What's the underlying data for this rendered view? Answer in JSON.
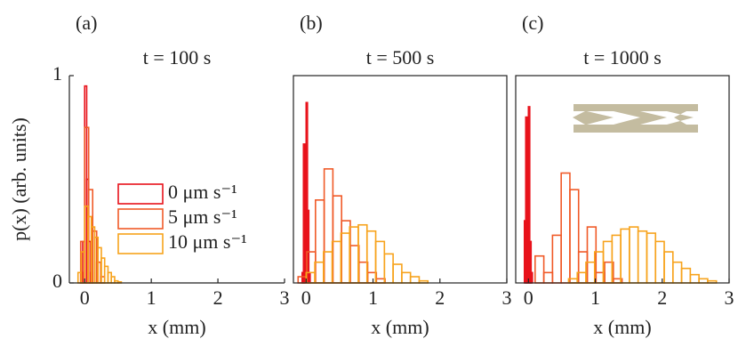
{
  "chart_data": [
    {
      "type": "histogram",
      "panel_label": "(a)",
      "title": "t = 100 s",
      "xlabel": "x (mm)",
      "ylabel": "p(x) (arb. units)",
      "xlim": [
        -0.23,
        3
      ],
      "ylim": [
        0,
        1
      ],
      "xticks": [
        0,
        1,
        2,
        3
      ],
      "yticks": [
        0,
        1
      ],
      "box": false,
      "legend": "right",
      "series": [
        {
          "name": "0 μm s⁻¹",
          "color": "#e8121b",
          "bins": [
            -0.06,
            -0.03,
            0,
            0.03,
            0.06,
            0.09,
            0.12
          ],
          "values": [
            0.05,
            0.2,
            0.95,
            0.5,
            0.2,
            0.05
          ]
        },
        {
          "name": "5 μm s⁻¹",
          "color": "#f05a28",
          "bins": [
            -0.06,
            0,
            0.06,
            0.12,
            0.18,
            0.24,
            0.3
          ],
          "values": [
            0.2,
            0.75,
            0.45,
            0.25,
            0.1,
            0.03
          ]
        },
        {
          "name": "10 μm s⁻¹",
          "color": "#f7a31c",
          "bins": [
            -0.1,
            -0.05,
            0,
            0.05,
            0.1,
            0.15,
            0.2,
            0.25,
            0.3,
            0.35,
            0.4,
            0.45,
            0.5,
            0.55
          ],
          "values": [
            0.05,
            0.15,
            0.37,
            0.32,
            0.27,
            0.22,
            0.17,
            0.12,
            0.08,
            0.05,
            0.03,
            0.01,
            0.005
          ]
        }
      ]
    },
    {
      "type": "histogram",
      "panel_label": "(b)",
      "title": "t = 500 s",
      "xlabel": "x (mm)",
      "xlim": [
        -0.19,
        3
      ],
      "ylim": [
        0,
        1
      ],
      "xticks": [
        0,
        1,
        2,
        3
      ],
      "box": true,
      "series": [
        {
          "color": "#e8121b",
          "bins": [
            -0.06,
            -0.04,
            -0.02,
            0,
            0.02,
            0.04,
            0.06
          ],
          "values": [
            0.05,
            0.67,
            0.3,
            0.87,
            0.35,
            0.05
          ]
        },
        {
          "color": "#f05a28",
          "bins": [
            -0.12,
            0.01,
            0.14,
            0.27,
            0.4,
            0.53,
            0.66,
            0.79,
            0.92,
            1.05,
            1.18
          ],
          "values": [
            0.03,
            0.15,
            0.4,
            0.55,
            0.42,
            0.3,
            0.18,
            0.1,
            0.05,
            0.02
          ]
        },
        {
          "color": "#f7a31c",
          "bins": [
            0,
            0.13,
            0.26,
            0.39,
            0.52,
            0.65,
            0.78,
            0.91,
            1.04,
            1.17,
            1.3,
            1.43,
            1.56,
            1.69,
            1.82
          ],
          "values": [
            0.05,
            0.1,
            0.15,
            0.2,
            0.24,
            0.27,
            0.28,
            0.25,
            0.2,
            0.14,
            0.09,
            0.05,
            0.03,
            0.01
          ]
        }
      ]
    },
    {
      "type": "histogram",
      "panel_label": "(c)",
      "title": "t = 1000 s",
      "xlabel": "x (mm)",
      "xlim": [
        -0.19,
        3
      ],
      "ylim": [
        0,
        1
      ],
      "xticks": [
        0,
        1,
        2,
        3
      ],
      "box": true,
      "series": [
        {
          "color": "#e8121b",
          "bins": [
            -0.06,
            -0.04,
            -0.02,
            0,
            0.02,
            0.04,
            0.06
          ],
          "values": [
            0.3,
            0.8,
            0.55,
            0.85,
            0.2,
            0.05
          ]
        },
        {
          "color": "#f05a28",
          "bins": [
            0.1,
            0.23,
            0.36,
            0.49,
            0.62,
            0.75,
            0.88,
            1.01,
            1.14,
            1.27,
            1.4
          ],
          "values": [
            0.13,
            0.05,
            0.23,
            0.53,
            0.45,
            0.15,
            0.27,
            0.05,
            0.1,
            0.02
          ]
        },
        {
          "color": "#f7a31c",
          "bins": [
            0.6,
            0.73,
            0.86,
            0.99,
            1.12,
            1.25,
            1.38,
            1.51,
            1.64,
            1.77,
            1.9,
            2.03,
            2.16,
            2.29,
            2.42,
            2.55,
            2.68,
            2.81
          ],
          "values": [
            0.02,
            0.05,
            0.1,
            0.15,
            0.2,
            0.23,
            0.26,
            0.27,
            0.25,
            0.24,
            0.2,
            0.15,
            0.1,
            0.07,
            0.04,
            0.02,
            0.01
          ]
        }
      ]
    }
  ]
}
